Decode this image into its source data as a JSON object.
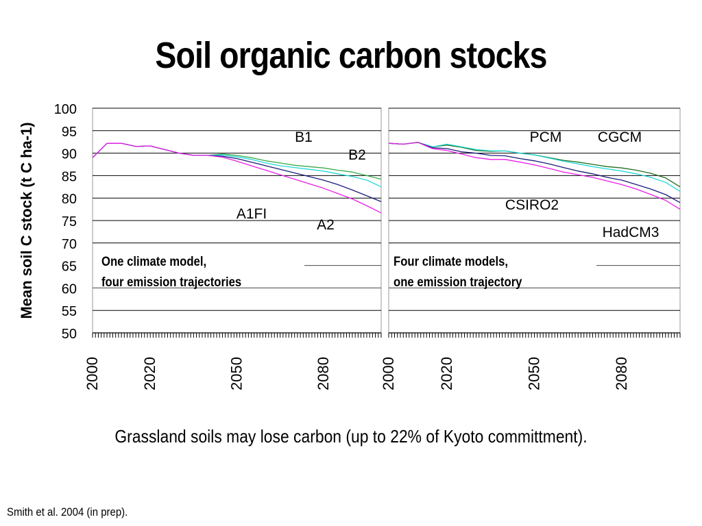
{
  "title": "Soil organic carbon stocks",
  "note": "Grassland soils may lose carbon (up to 22% of Kyoto committment).",
  "citation": "Smith et al. 2004 (in prep).",
  "chart_data": {
    "type": "line",
    "ylabel": "Mean soil C stock (t C ha-1)",
    "ylim": [
      50,
      100
    ],
    "yticks": [
      100,
      95,
      90,
      85,
      80,
      75,
      70,
      65,
      60,
      55,
      50
    ],
    "xlim": [
      2000,
      2100
    ],
    "grid": true,
    "panels": [
      {
        "panel_text": [
          "One climate model,",
          "four emission trajectories"
        ],
        "xticks": [
          "2000",
          "2020",
          "2050",
          "2080"
        ],
        "x": [
          2000,
          2005,
          2010,
          2015,
          2020,
          2025,
          2030,
          2035,
          2040,
          2045,
          2050,
          2055,
          2060,
          2065,
          2070,
          2075,
          2080,
          2085,
          2090,
          2095,
          2100
        ],
        "series": [
          {
            "name": "B1",
            "color": "#3aa84a",
            "values": [
              89.0,
              92.2,
              92.2,
              91.5,
              91.6,
              90.8,
              90.0,
              89.5,
              89.5,
              89.8,
              89.5,
              89.0,
              88.3,
              87.8,
              87.3,
              87.0,
              86.7,
              86.2,
              85.8,
              85.0,
              84.2
            ]
          },
          {
            "name": "B2",
            "color": "#22d8d8",
            "values": [
              89.0,
              92.2,
              92.2,
              91.5,
              91.6,
              90.8,
              90.0,
              89.5,
              89.5,
              89.6,
              89.2,
              88.6,
              87.8,
              87.2,
              86.8,
              86.4,
              86.0,
              85.4,
              84.8,
              84.0,
              82.5
            ]
          },
          {
            "name": "A1FI",
            "color": "#1a1a7a",
            "values": [
              89.0,
              92.2,
              92.2,
              91.5,
              91.6,
              90.8,
              90.0,
              89.5,
              89.5,
              89.3,
              88.8,
              88.0,
              87.2,
              86.4,
              85.6,
              84.8,
              84.0,
              83.0,
              81.8,
              80.5,
              79.2
            ]
          },
          {
            "name": "A2",
            "color": "#e81ee8",
            "values": [
              89.0,
              92.2,
              92.2,
              91.5,
              91.6,
              90.8,
              90.0,
              89.5,
              89.5,
              89.1,
              88.2,
              87.2,
              86.2,
              85.2,
              84.2,
              83.2,
              82.2,
              81.0,
              79.8,
              78.3,
              76.7
            ]
          }
        ]
      },
      {
        "panel_text": [
          "Four climate models,",
          "one emission trajectory"
        ],
        "xticks": [
          "2000",
          "2020",
          "2050",
          "2080"
        ],
        "x": [
          2000,
          2005,
          2010,
          2015,
          2020,
          2025,
          2030,
          2035,
          2040,
          2045,
          2050,
          2055,
          2060,
          2065,
          2070,
          2075,
          2080,
          2085,
          2090,
          2095,
          2100
        ],
        "series": [
          {
            "name": "PCM",
            "color": "#1f6e1f",
            "values": [
              92.2,
              92.0,
              92.4,
              91.4,
              91.8,
              91.3,
              90.6,
              90.4,
              90.5,
              90.0,
              89.6,
              89.0,
              88.4,
              88.0,
              87.5,
              87.0,
              86.7,
              86.2,
              85.5,
              84.5,
              82.5
            ]
          },
          {
            "name": "CGCM",
            "color": "#22d8d8",
            "values": [
              92.2,
              92.0,
              92.4,
              91.4,
              92.0,
              91.4,
              90.8,
              90.5,
              90.5,
              90.0,
              89.6,
              88.9,
              88.2,
              87.6,
              87.0,
              86.5,
              86.0,
              85.4,
              84.6,
              83.5,
              81.5
            ]
          },
          {
            "name": "CSIRO2",
            "color": "#1a1a7a",
            "values": [
              92.2,
              92.0,
              92.4,
              91.2,
              91.0,
              90.3,
              90.0,
              89.5,
              89.4,
              88.8,
              88.3,
              87.6,
              86.8,
              86.0,
              85.4,
              84.6,
              84.0,
              83.0,
              82.0,
              80.8,
              79.0
            ]
          },
          {
            "name": "HadCM3",
            "color": "#e81ee8",
            "values": [
              92.2,
              92.0,
              92.4,
              91.0,
              90.6,
              89.8,
              89.0,
              88.6,
              88.6,
              88.0,
              87.4,
              86.6,
              85.8,
              85.2,
              84.6,
              83.8,
              83.0,
              82.0,
              80.8,
              79.5,
              77.5
            ]
          }
        ]
      }
    ]
  }
}
